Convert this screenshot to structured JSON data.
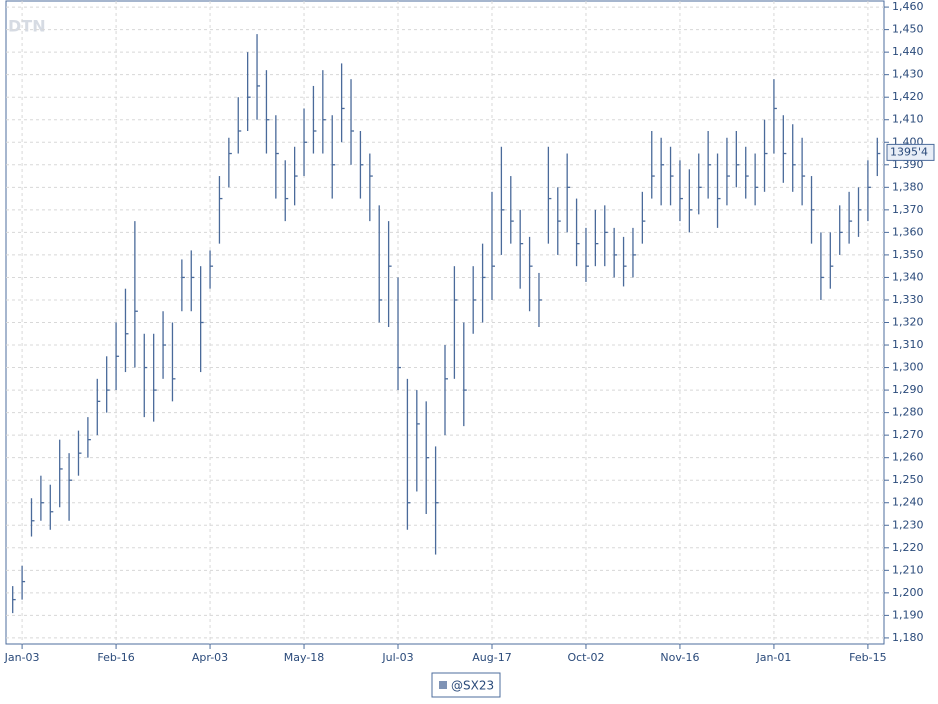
{
  "chart_data": {
    "type": "ohlc",
    "watermark": "DTN",
    "categories": [
      null,
      "Jan-03",
      null,
      null,
      null,
      null,
      null,
      null,
      null,
      null,
      null,
      "Feb-16",
      null,
      null,
      null,
      null,
      null,
      null,
      null,
      null,
      null,
      "Apr-03",
      null,
      null,
      null,
      null,
      null,
      null,
      null,
      null,
      null,
      "May-18",
      null,
      null,
      null,
      null,
      null,
      null,
      null,
      null,
      null,
      "Jul-03",
      null,
      null,
      null,
      null,
      null,
      null,
      null,
      null,
      null,
      "Aug-17",
      null,
      null,
      null,
      null,
      null,
      null,
      null,
      null,
      null,
      "Oct-02",
      null,
      null,
      null,
      null,
      null,
      null,
      null,
      null,
      null,
      "Nov-16",
      null,
      null,
      null,
      null,
      null,
      null,
      null,
      null,
      null,
      "Jan-01",
      null,
      null,
      null,
      null,
      null,
      null,
      null,
      null,
      null,
      "Feb-15",
      null
    ],
    "series": [
      {
        "name": "@SX23",
        "color": "#4a6a9a",
        "high": [
          1203,
          1212,
          1242,
          1252,
          1248,
          1268,
          1262,
          1272,
          1278,
          1295,
          1305,
          1320,
          1335,
          1365,
          1315,
          1315,
          1325,
          1320,
          1348,
          1352,
          1345,
          1352,
          1385,
          1402,
          1420,
          1440,
          1448,
          1432,
          1412,
          1392,
          1398,
          1415,
          1425,
          1432,
          1412,
          1435,
          1428,
          1405,
          1395,
          1372,
          1365,
          1340,
          1295,
          1290,
          1285,
          1265,
          1310,
          1345,
          1320,
          1345,
          1355,
          1378,
          1398,
          1385,
          1370,
          1358,
          1342,
          1398,
          1380,
          1395,
          1375,
          1362,
          1370,
          1372,
          1362,
          1358,
          1362,
          1378,
          1405,
          1402,
          1398,
          1392,
          1388,
          1395,
          1405,
          1395,
          1402,
          1405,
          1398,
          1395,
          1410,
          1428,
          1412,
          1408,
          1402,
          1385,
          1360,
          1360,
          1372,
          1378,
          1380,
          1392,
          1402
        ],
        "low": [
          1191,
          1197,
          1225,
          1232,
          1228,
          1238,
          1232,
          1252,
          1260,
          1270,
          1280,
          1290,
          1298,
          1300,
          1278,
          1276,
          1295,
          1285,
          1325,
          1325,
          1298,
          1335,
          1355,
          1380,
          1395,
          1405,
          1410,
          1395,
          1375,
          1365,
          1372,
          1385,
          1395,
          1395,
          1375,
          1400,
          1390,
          1375,
          1365,
          1320,
          1318,
          1290,
          1228,
          1245,
          1235,
          1217,
          1270,
          1295,
          1274,
          1315,
          1320,
          1330,
          1350,
          1355,
          1335,
          1325,
          1318,
          1355,
          1350,
          1360,
          1345,
          1338,
          1345,
          1345,
          1340,
          1336,
          1340,
          1355,
          1375,
          1372,
          1372,
          1365,
          1360,
          1368,
          1375,
          1362,
          1372,
          1380,
          1375,
          1372,
          1378,
          1395,
          1382,
          1378,
          1372,
          1355,
          1330,
          1335,
          1350,
          1355,
          1358,
          1365,
          1385
        ],
        "close": [
          1197,
          1205,
          1232,
          1240,
          1236,
          1255,
          1250,
          1262,
          1268,
          1285,
          1290,
          1305,
          1315,
          1325,
          1300,
          1290,
          1310,
          1295,
          1340,
          1340,
          1320,
          1345,
          1375,
          1395,
          1405,
          1420,
          1425,
          1410,
          1395,
          1375,
          1385,
          1400,
          1405,
          1410,
          1390,
          1415,
          1405,
          1390,
          1385,
          1330,
          1345,
          1300,
          1240,
          1275,
          1260,
          1240,
          1295,
          1330,
          1290,
          1330,
          1340,
          1345,
          1370,
          1365,
          1355,
          1345,
          1330,
          1375,
          1365,
          1380,
          1355,
          1345,
          1355,
          1360,
          1350,
          1345,
          1350,
          1365,
          1385,
          1390,
          1385,
          1375,
          1370,
          1380,
          1390,
          1375,
          1385,
          1390,
          1385,
          1380,
          1395,
          1415,
          1395,
          1390,
          1385,
          1370,
          1340,
          1345,
          1360,
          1365,
          1370,
          1380,
          1395
        ]
      }
    ],
    "last_price": {
      "value": 1395.5,
      "label": "1395'4"
    },
    "ylim": [
      1177.3,
      1462.7
    ],
    "yticks": [
      {
        "value": 1180,
        "label": "1,180"
      },
      {
        "value": 1190,
        "label": "1,190"
      },
      {
        "value": 1200,
        "label": "1,200"
      },
      {
        "value": 1210,
        "label": "1,210"
      },
      {
        "value": 1220,
        "label": "1,220"
      },
      {
        "value": 1230,
        "label": "1,230"
      },
      {
        "value": 1240,
        "label": "1,240"
      },
      {
        "value": 1250,
        "label": "1,250"
      },
      {
        "value": 1260,
        "label": "1,260"
      },
      {
        "value": 1270,
        "label": "1,270"
      },
      {
        "value": 1280,
        "label": "1,280"
      },
      {
        "value": 1290,
        "label": "1,290"
      },
      {
        "value": 1300,
        "label": "1,300"
      },
      {
        "value": 1310,
        "label": "1,310"
      },
      {
        "value": 1320,
        "label": "1,320"
      },
      {
        "value": 1330,
        "label": "1,330"
      },
      {
        "value": 1340,
        "label": "1,340"
      },
      {
        "value": 1350,
        "label": "1,350"
      },
      {
        "value": 1360,
        "label": "1,360"
      },
      {
        "value": 1370,
        "label": "1,370"
      },
      {
        "value": 1380,
        "label": "1,380"
      },
      {
        "value": 1390,
        "label": "1,390"
      },
      {
        "value": 1400,
        "label": "1,400"
      },
      {
        "value": 1410,
        "label": "1,410"
      },
      {
        "value": 1420,
        "label": "1,420"
      },
      {
        "value": 1430,
        "label": "1,430"
      },
      {
        "value": 1440,
        "label": "1,440"
      },
      {
        "value": 1450,
        "label": "1,450"
      },
      {
        "value": 1460,
        "label": "1,460"
      }
    ],
    "grid": true
  }
}
